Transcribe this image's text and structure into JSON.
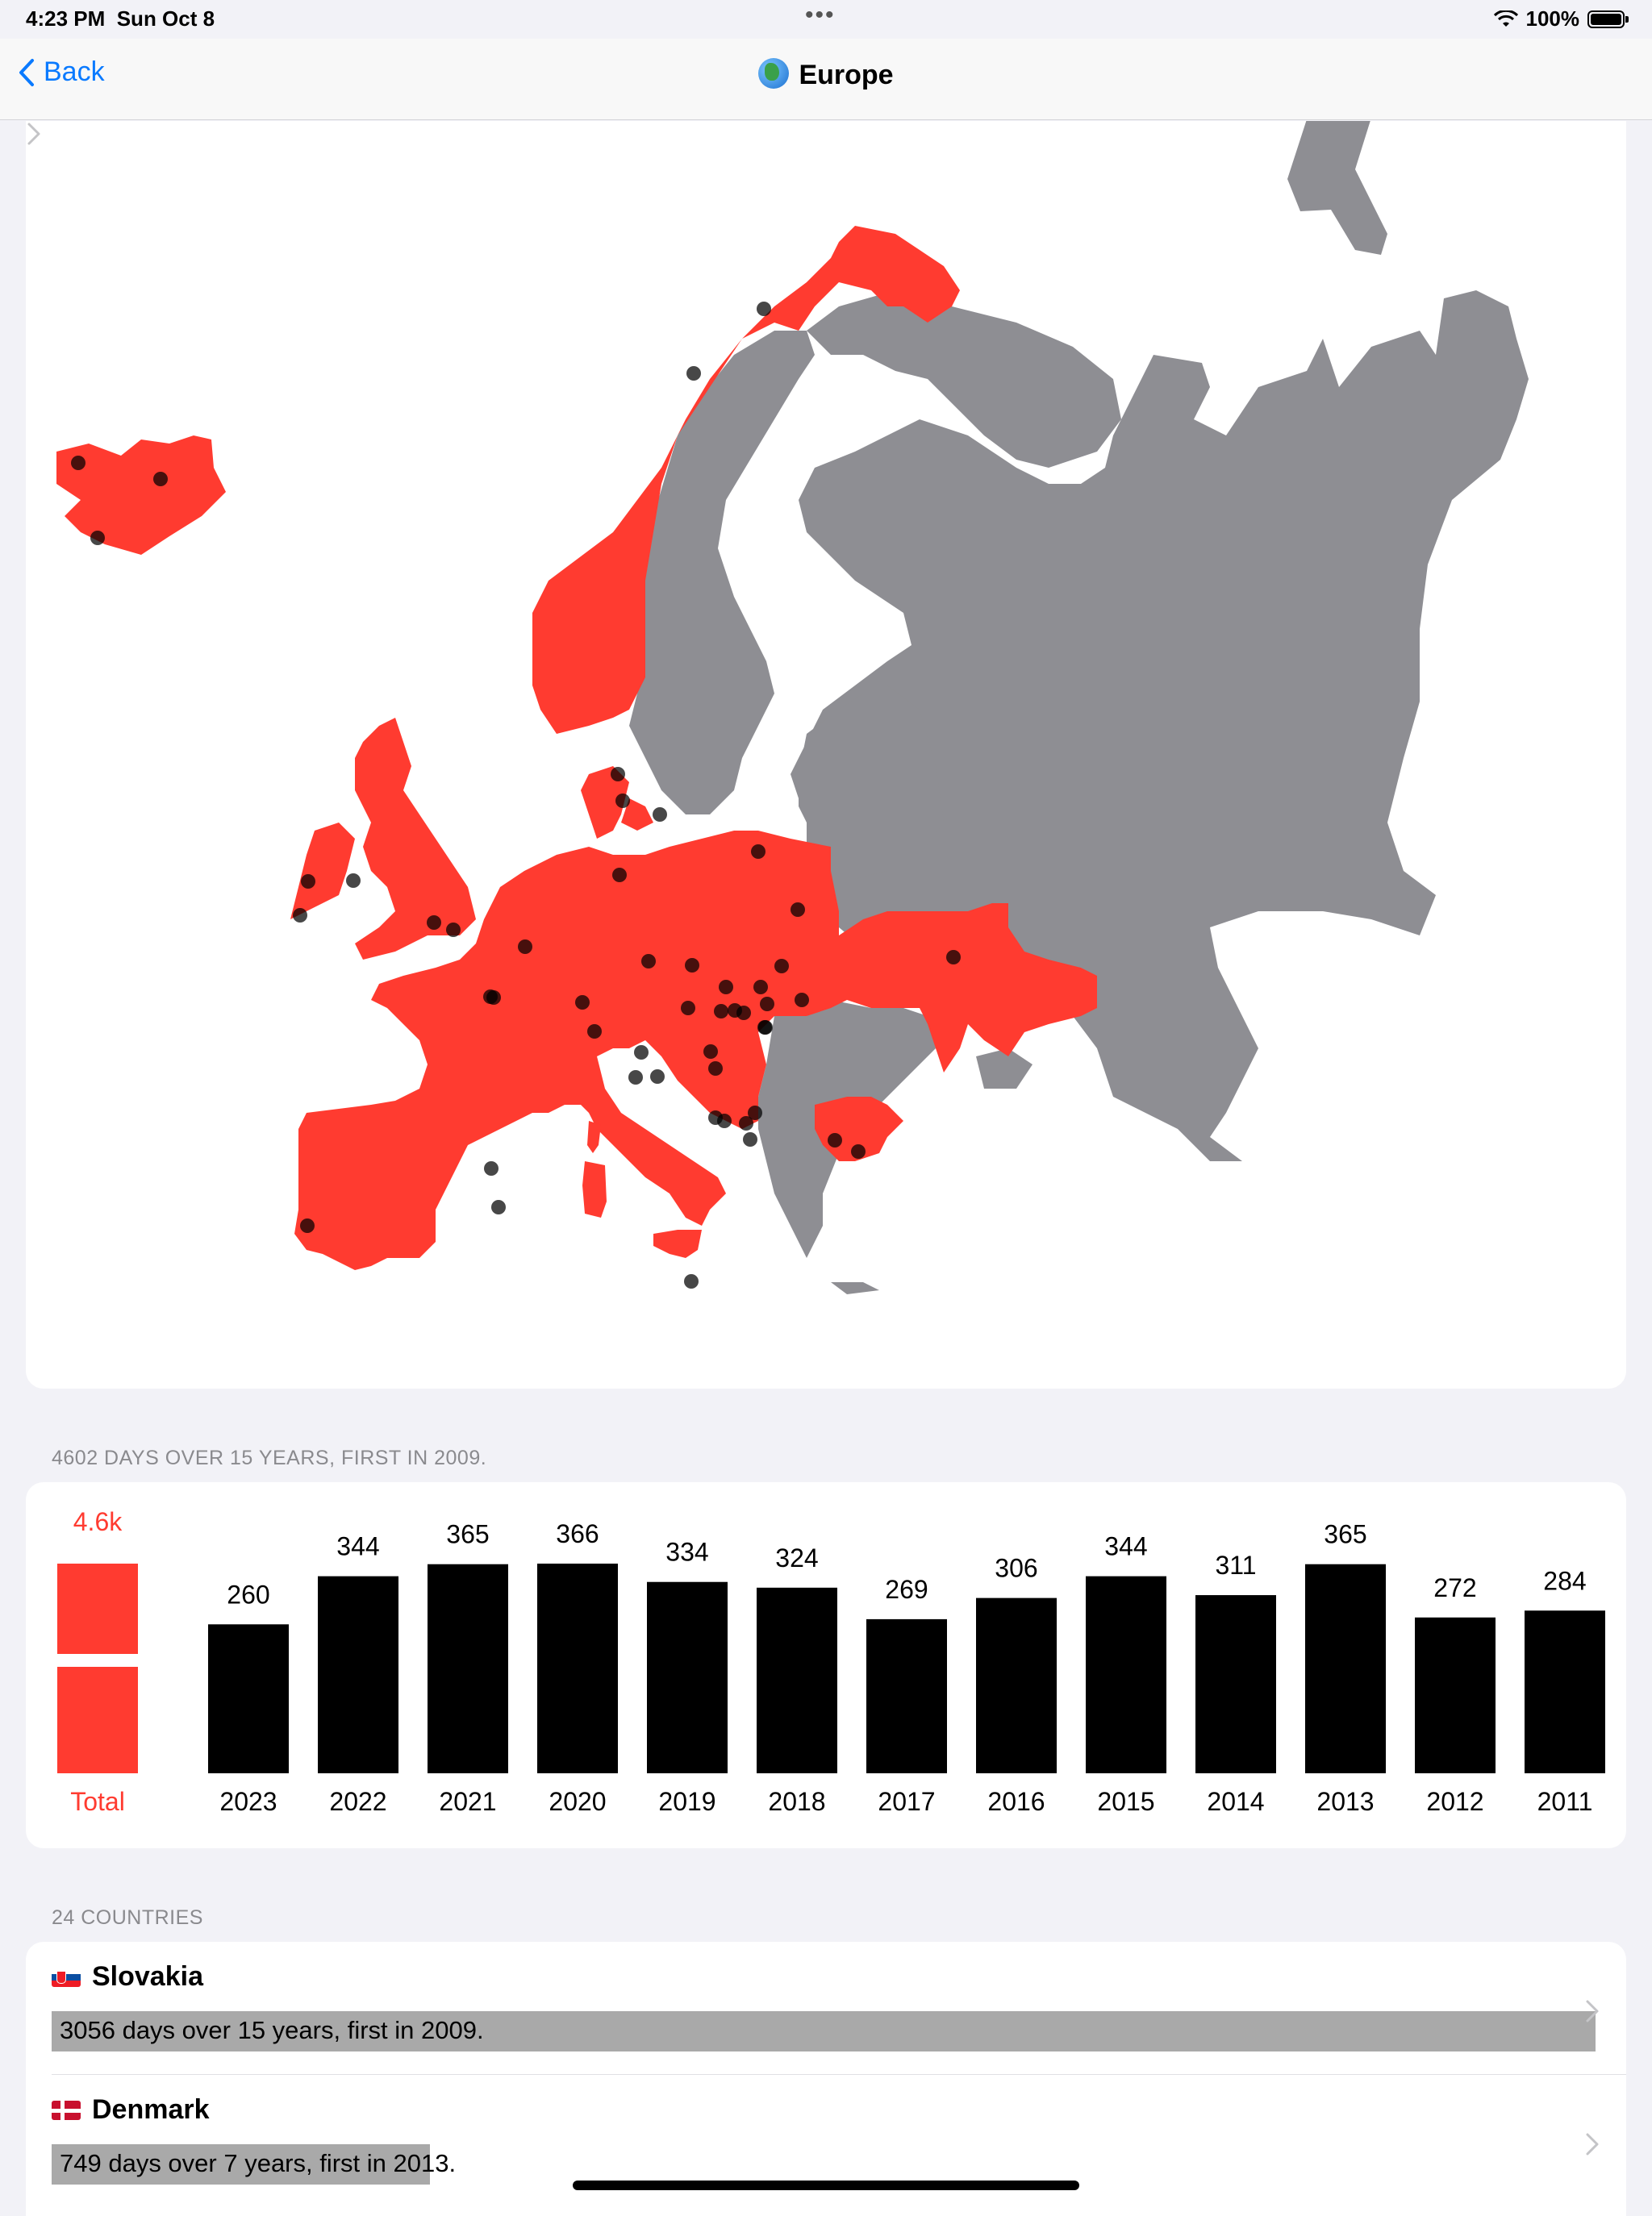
{
  "status": {
    "time": "4:23 PM",
    "date": "Sun Oct 8",
    "battery": "100%"
  },
  "nav": {
    "back_label": "Back",
    "title": "Europe"
  },
  "colors": {
    "visited": "#ff3b30",
    "unvisited": "#8e8e93",
    "bar": "#000000",
    "total_bar": "#ff3b30",
    "link": "#0a7aff"
  },
  "summary_header": "4602 DAYS OVER 15 YEARS, FIRST IN 2009.",
  "chart_data": {
    "type": "bar",
    "total": {
      "label": "Total",
      "value_label": "4.6k",
      "value": 4602
    },
    "categories": [
      "2023",
      "2022",
      "2021",
      "2020",
      "2019",
      "2018",
      "2017",
      "2016",
      "2015",
      "2014",
      "2013",
      "2012",
      "2011"
    ],
    "values": [
      260,
      344,
      365,
      366,
      334,
      324,
      269,
      306,
      344,
      311,
      365,
      272,
      284
    ],
    "ylim": [
      0,
      366
    ]
  },
  "countries_header": "24 COUNTRIES",
  "countries": [
    {
      "name": "Slovakia",
      "flag": "slovakia-flag",
      "detail": "3056 days over 15 years, first in 2009.",
      "days": 3056
    },
    {
      "name": "Denmark",
      "flag": "denmark-flag",
      "detail": "749 days over 7 years, first in 2013.",
      "days": 749
    }
  ]
}
